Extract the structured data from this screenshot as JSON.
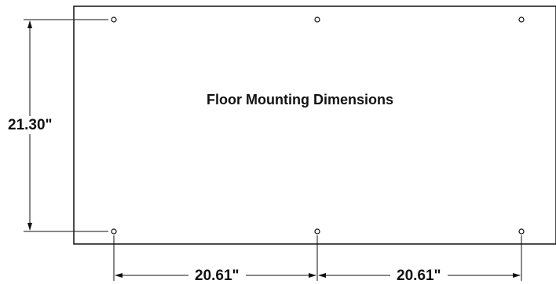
{
  "diagram": {
    "title": "Floor Mounting Dimensions",
    "vertical_dimension": "21.30\"",
    "horizontal_dimensions": [
      "20.61\"",
      "20.61\""
    ],
    "colors": {
      "line": "#111111",
      "background": "#ffffff"
    },
    "mounting_holes": {
      "rows": 2,
      "columns": 3
    }
  }
}
